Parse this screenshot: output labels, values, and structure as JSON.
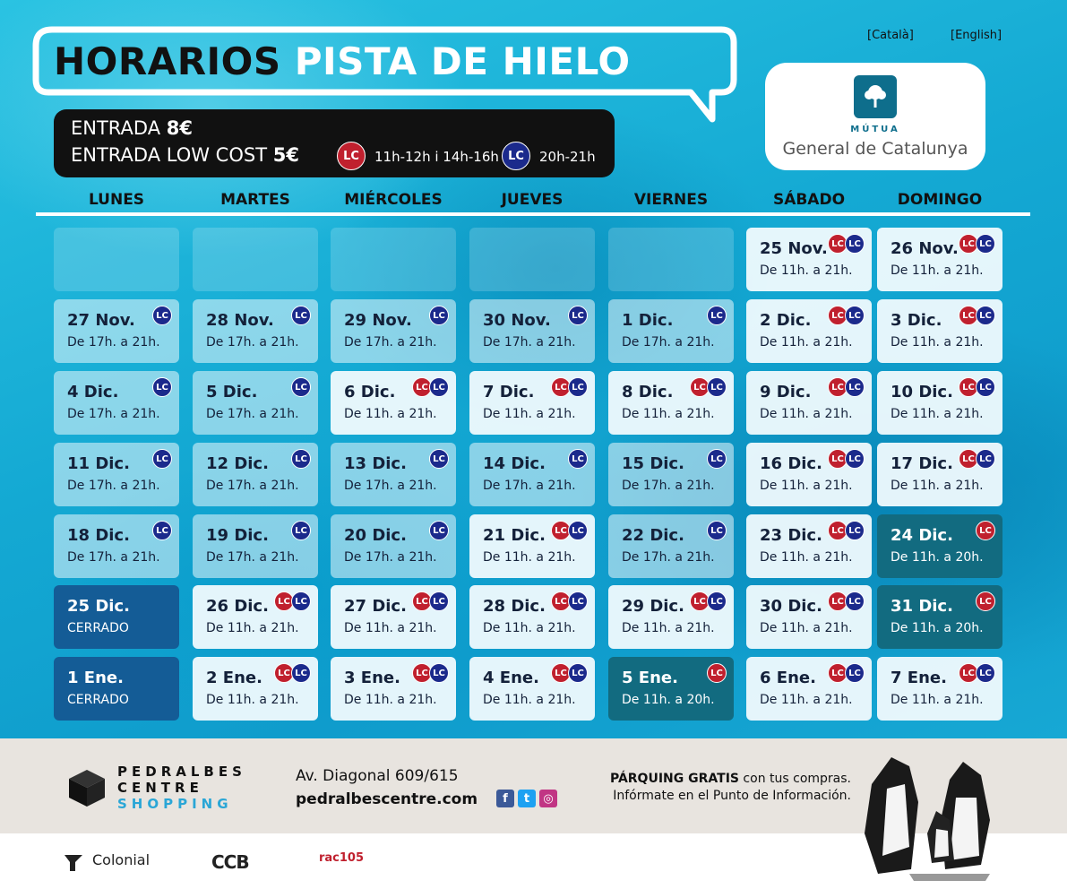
{
  "header": {
    "title_dark": "HORARIOS",
    "title_light": "PISTA DE HIELO",
    "lang_ca": "[Català]",
    "lang_en": "[English]"
  },
  "sponsor_logo": {
    "small": "MÚTUA",
    "big": "General de Catalunya"
  },
  "prices": {
    "line1_label": "ENTRADA",
    "line1_price": "8€",
    "line2_label": "ENTRADA LOW COST",
    "line2_price": "5€",
    "lc_red_hours": "11h-12h i 14h-16h",
    "lc_blue_hours": "20h-21h",
    "badge_text": "LC"
  },
  "colors": {
    "lc_red": "#c0202e",
    "lc_blue": "#1b2a8c",
    "teal": "#126b80",
    "closed": "#145c96"
  },
  "days": [
    "LUNES",
    "MARTES",
    "MIÉRCOLES",
    "JUEVES",
    "VIERNES",
    "SÁBADO",
    "DOMINGO"
  ],
  "calendar": [
    [
      {
        "style": "empty"
      },
      {
        "style": "empty"
      },
      {
        "style": "empty"
      },
      {
        "style": "empty"
      },
      {
        "style": "empty"
      },
      {
        "date": "25 Nov.",
        "time": "De 11h. a 21h.",
        "badges": [
          "red",
          "blue"
        ],
        "style": "white"
      },
      {
        "date": "26 Nov.",
        "time": "De 11h. a 21h.",
        "badges": [
          "red",
          "blue"
        ],
        "style": "white"
      }
    ],
    [
      {
        "date": "27 Nov.",
        "time": "De 17h. a 21h.",
        "badges": [
          "blue"
        ],
        "style": "light"
      },
      {
        "date": "28 Nov.",
        "time": "De 17h. a 21h.",
        "badges": [
          "blue"
        ],
        "style": "light"
      },
      {
        "date": "29 Nov.",
        "time": "De 17h. a 21h.",
        "badges": [
          "blue"
        ],
        "style": "light"
      },
      {
        "date": "30 Nov.",
        "time": "De 17h. a 21h.",
        "badges": [
          "blue"
        ],
        "style": "light"
      },
      {
        "date": "1 Dic.",
        "time": "De 17h. a 21h.",
        "badges": [
          "blue"
        ],
        "style": "light"
      },
      {
        "date": "2 Dic.",
        "time": "De 11h. a 21h.",
        "badges": [
          "red",
          "blue"
        ],
        "style": "white"
      },
      {
        "date": "3 Dic.",
        "time": "De 11h. a 21h.",
        "badges": [
          "red",
          "blue"
        ],
        "style": "white"
      }
    ],
    [
      {
        "date": "4 Dic.",
        "time": "De 17h. a 21h.",
        "badges": [
          "blue"
        ],
        "style": "light"
      },
      {
        "date": "5 Dic.",
        "time": "De 17h. a 21h.",
        "badges": [
          "blue"
        ],
        "style": "light"
      },
      {
        "date": "6 Dic.",
        "time": "De 11h. a 21h.",
        "badges": [
          "red",
          "blue"
        ],
        "style": "white"
      },
      {
        "date": "7 Dic.",
        "time": "De 11h. a 21h.",
        "badges": [
          "red",
          "blue"
        ],
        "style": "white"
      },
      {
        "date": "8 Dic.",
        "time": "De 11h. a 21h.",
        "badges": [
          "red",
          "blue"
        ],
        "style": "white"
      },
      {
        "date": "9 Dic.",
        "time": "De 11h. a 21h.",
        "badges": [
          "red",
          "blue"
        ],
        "style": "white"
      },
      {
        "date": "10 Dic.",
        "time": "De 11h. a 21h.",
        "badges": [
          "red",
          "blue"
        ],
        "style": "white"
      }
    ],
    [
      {
        "date": "11 Dic.",
        "time": "De 17h. a 21h.",
        "badges": [
          "blue"
        ],
        "style": "light"
      },
      {
        "date": "12 Dic.",
        "time": "De 17h. a 21h.",
        "badges": [
          "blue"
        ],
        "style": "light"
      },
      {
        "date": "13 Dic.",
        "time": "De 17h. a 21h.",
        "badges": [
          "blue"
        ],
        "style": "light"
      },
      {
        "date": "14 Dic.",
        "time": "De 17h. a 21h.",
        "badges": [
          "blue"
        ],
        "style": "light"
      },
      {
        "date": "15 Dic.",
        "time": "De 17h. a 21h.",
        "badges": [
          "blue"
        ],
        "style": "light"
      },
      {
        "date": "16 Dic.",
        "time": "De 11h. a 21h.",
        "badges": [
          "red",
          "blue"
        ],
        "style": "white"
      },
      {
        "date": "17 Dic.",
        "time": "De 11h. a 21h.",
        "badges": [
          "red",
          "blue"
        ],
        "style": "white"
      }
    ],
    [
      {
        "date": "18 Dic.",
        "time": "De 17h. a 21h.",
        "badges": [
          "blue"
        ],
        "style": "light"
      },
      {
        "date": "19 Dic.",
        "time": "De 17h. a 21h.",
        "badges": [
          "blue"
        ],
        "style": "light"
      },
      {
        "date": "20 Dic.",
        "time": "De 17h. a 21h.",
        "badges": [
          "blue"
        ],
        "style": "light"
      },
      {
        "date": "21 Dic.",
        "time": "De 11h. a 21h.",
        "badges": [
          "red",
          "blue"
        ],
        "style": "white"
      },
      {
        "date": "22 Dic.",
        "time": "De 17h. a 21h.",
        "badges": [
          "blue"
        ],
        "style": "light"
      },
      {
        "date": "23 Dic.",
        "time": "De 11h. a 21h.",
        "badges": [
          "red",
          "blue"
        ],
        "style": "white"
      },
      {
        "date": "24 Dic.",
        "time": "De 11h. a 20h.",
        "badges": [
          "red"
        ],
        "style": "teal"
      }
    ],
    [
      {
        "date": "25 Dic.",
        "time": "CERRADO",
        "badges": [],
        "style": "navy"
      },
      {
        "date": "26 Dic.",
        "time": "De 11h. a 21h.",
        "badges": [
          "red",
          "blue"
        ],
        "style": "white"
      },
      {
        "date": "27 Dic.",
        "time": "De 11h. a 21h.",
        "badges": [
          "red",
          "blue"
        ],
        "style": "white"
      },
      {
        "date": "28 Dic.",
        "time": "De 11h. a 21h.",
        "badges": [
          "red",
          "blue"
        ],
        "style": "white"
      },
      {
        "date": "29 Dic.",
        "time": "De 11h. a 21h.",
        "badges": [
          "red",
          "blue"
        ],
        "style": "white"
      },
      {
        "date": "30 Dic.",
        "time": "De 11h. a 21h.",
        "badges": [
          "red",
          "blue"
        ],
        "style": "white"
      },
      {
        "date": "31 Dic.",
        "time": "De 11h. a 20h.",
        "badges": [
          "red"
        ],
        "style": "teal"
      }
    ],
    [
      {
        "date": "1 Ene.",
        "time": "CERRADO",
        "badges": [],
        "style": "navy"
      },
      {
        "date": "2 Ene.",
        "time": "De 11h. a 21h.",
        "badges": [
          "red",
          "blue"
        ],
        "style": "white"
      },
      {
        "date": "3 Ene.",
        "time": "De 11h. a 21h.",
        "badges": [
          "red",
          "blue"
        ],
        "style": "white"
      },
      {
        "date": "4 Ene.",
        "time": "De 11h. a 21h.",
        "badges": [
          "red",
          "blue"
        ],
        "style": "white"
      },
      {
        "date": "5 Ene.",
        "time": "De 11h. a 20h.",
        "badges": [
          "red"
        ],
        "style": "teal"
      },
      {
        "date": "6 Ene.",
        "time": "De 11h. a 21h.",
        "badges": [
          "red",
          "blue"
        ],
        "style": "white"
      },
      {
        "date": "7 Ene.",
        "time": "De 11h. a 21h.",
        "badges": [
          "red",
          "blue"
        ],
        "style": "white"
      }
    ]
  ],
  "footer": {
    "brand_line1": "PEDRALBES",
    "brand_line2": "CENTRE",
    "brand_line3": "SHOPPING",
    "address": "Av. Diagonal 609/615",
    "website": "pedralbescentre.com",
    "parking_bold": "PÁRQUING GRATIS",
    "parking_rest": " con tus compras.",
    "parking_line2": "Infórmate en el Punto de Información.",
    "social_icons": [
      "facebook-icon",
      "twitter-icon",
      "instagram-icon"
    ]
  },
  "sponsors": {
    "colonial": "Colonial",
    "ccb": "CCB",
    "rac": "rac105"
  }
}
